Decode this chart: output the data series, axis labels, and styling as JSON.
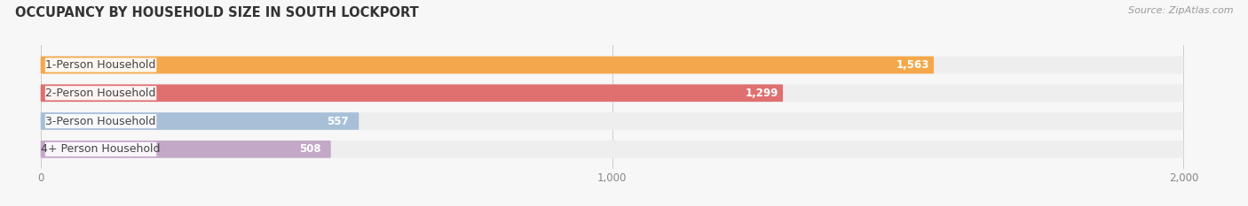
{
  "title": "OCCUPANCY BY HOUSEHOLD SIZE IN SOUTH LOCKPORT",
  "source": "Source: ZipAtlas.com",
  "categories": [
    "1-Person Household",
    "2-Person Household",
    "3-Person Household",
    "4+ Person Household"
  ],
  "values": [
    1563,
    1299,
    557,
    508
  ],
  "bar_colors": [
    "#F5A84B",
    "#E07070",
    "#A8BFD8",
    "#C4A8C8"
  ],
  "xlim_min": -60,
  "xlim_max": 2080,
  "data_max": 2000,
  "xticks": [
    0,
    1000,
    2000
  ],
  "xticklabels": [
    "0",
    "1,000",
    "2,000"
  ],
  "background_color": "#f7f7f7",
  "bar_bg_color": "#eeeeee",
  "title_fontsize": 10.5,
  "source_fontsize": 8,
  "label_fontsize": 9,
  "value_fontsize": 8.5,
  "tick_fontsize": 8.5,
  "bar_height": 0.62,
  "bar_gap": 0.38
}
